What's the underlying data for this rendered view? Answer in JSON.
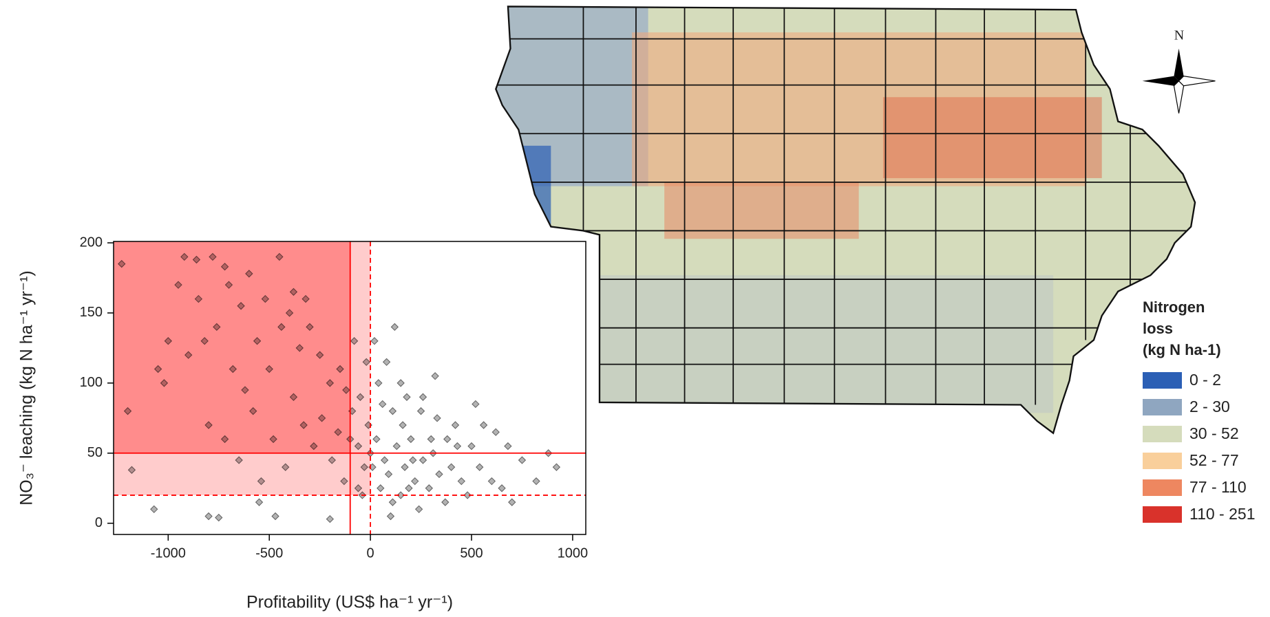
{
  "chart_data": {
    "type": "scatter",
    "x_label": "Profitability (US$ ha⁻¹ yr⁻¹)",
    "y_label": "NO₃⁻ leaching (kg N ha⁻¹ yr⁻¹)",
    "x": [
      -1230,
      -920,
      -860,
      -780,
      -720,
      -600,
      -950,
      -1000,
      -1050,
      -1020,
      -1200,
      -1180,
      -1070,
      -850,
      -700,
      -640,
      -520,
      -450,
      -380,
      -320,
      -900,
      -820,
      -760,
      -680,
      -620,
      -560,
      -500,
      -440,
      -400,
      -350,
      -300,
      -250,
      -200,
      -150,
      -120,
      -80,
      -20,
      40,
      80,
      120,
      180,
      250,
      320,
      420,
      520,
      560,
      620,
      680,
      750,
      820,
      880,
      920,
      -800,
      -720,
      -650,
      -580,
      -540,
      -480,
      -420,
      -380,
      -330,
      -280,
      -240,
      -190,
      -160,
      -130,
      -90,
      -60,
      -40,
      -10,
      10,
      30,
      50,
      70,
      90,
      110,
      130,
      150,
      170,
      200,
      220,
      240,
      260,
      290,
      310,
      340,
      370,
      400,
      450,
      480,
      500,
      540,
      600,
      650,
      700,
      -800,
      -750,
      -550,
      -470,
      -200,
      100,
      300,
      150,
      -50,
      20,
      -100,
      0,
      60,
      160,
      210,
      260,
      -30,
      -60,
      110,
      190,
      330,
      430,
      380
    ],
    "values": [
      185,
      190,
      188,
      190,
      183,
      178,
      170,
      130,
      110,
      100,
      80,
      38,
      10,
      160,
      170,
      155,
      160,
      190,
      165,
      160,
      120,
      130,
      140,
      110,
      95,
      130,
      110,
      140,
      150,
      125,
      140,
      120,
      100,
      110,
      95,
      130,
      115,
      100,
      115,
      140,
      90,
      80,
      105,
      70,
      85,
      70,
      65,
      55,
      45,
      30,
      50,
      40,
      70,
      60,
      45,
      80,
      30,
      60,
      40,
      90,
      70,
      55,
      75,
      45,
      65,
      30,
      80,
      55,
      20,
      70,
      40,
      60,
      25,
      45,
      35,
      80,
      55,
      20,
      40,
      60,
      30,
      10,
      45,
      25,
      50,
      35,
      15,
      40,
      30,
      20,
      55,
      40,
      30,
      25,
      15,
      5,
      4,
      15,
      5,
      3,
      5,
      60,
      100,
      90,
      130,
      60,
      50,
      85,
      70,
      45,
      90,
      40,
      25,
      15,
      25,
      75,
      55,
      60
    ],
    "color": "#000000",
    "xlim": [
      -1270,
      1065
    ],
    "ylim": [
      -8,
      201
    ],
    "xticks": [
      -1000,
      -500,
      0,
      500,
      1000
    ],
    "yticks": [
      0,
      50,
      100,
      150,
      200
    ],
    "thresholds": {
      "solid": {
        "x": -100,
        "y": 50
      },
      "dashed": {
        "x": 0,
        "y": 20
      }
    },
    "threshold_color": "#ff0000",
    "shade_colors": {
      "dashed": "#ffcccc",
      "solid": "#ff8c8c"
    }
  },
  "map": {
    "north_label": "N",
    "legend": {
      "title": [
        "Nitrogen",
        "loss",
        "(kg N ha-1)"
      ],
      "items": [
        {
          "label": "0 - 2",
          "color": "#2b5fb5"
        },
        {
          "label": "2 - 30",
          "color": "#8fa6c0"
        },
        {
          "label": "30 - 52",
          "color": "#d5dcbc"
        },
        {
          "label": "52 - 77",
          "color": "#f9cf9b"
        },
        {
          "label": "77 - 110",
          "color": "#ee8760"
        },
        {
          "label": "110 - 251",
          "color": "#d9322b"
        }
      ]
    }
  }
}
